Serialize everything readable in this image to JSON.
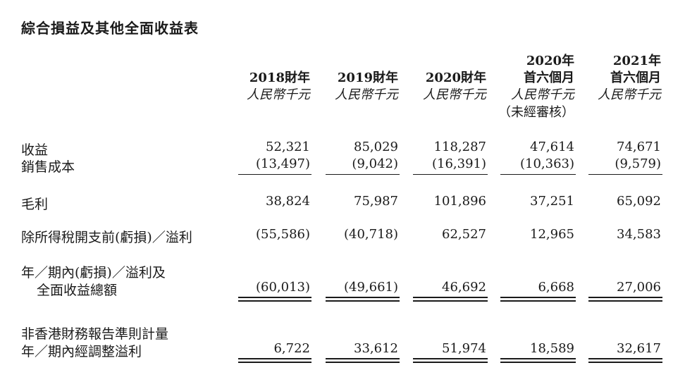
{
  "title": "綜合損益及其他全面收益表",
  "columns": [
    {
      "year_line": "",
      "period": "2018財年",
      "unit": "人民幣千元",
      "note": ""
    },
    {
      "year_line": "",
      "period": "2019財年",
      "unit": "人民幣千元",
      "note": ""
    },
    {
      "year_line": "",
      "period": "2020財年",
      "unit": "人民幣千元",
      "note": ""
    },
    {
      "year_line": "2020年",
      "period": "首六個月",
      "unit": "人民幣千元",
      "note": "（未經審核）"
    },
    {
      "year_line": "2021年",
      "period": "首六個月",
      "unit": "人民幣千元",
      "note": ""
    }
  ],
  "rows": [
    {
      "label": "收益",
      "label2": "",
      "values": [
        "52,321",
        "85,029",
        "118,287",
        "47,614",
        "74,671"
      ]
    },
    {
      "label": "銷售成本",
      "label2": "",
      "values": [
        "(13,497)",
        "(9,042)",
        "(16,391)",
        "(10,363)",
        "(9,579)"
      ]
    },
    {
      "label": "毛利",
      "label2": "",
      "values": [
        "38,824",
        "75,987",
        "101,896",
        "37,251",
        "65,092"
      ]
    },
    {
      "label": "除所得稅開支前(虧損)／溢利",
      "label2": "",
      "values": [
        "(55,586)",
        "(40,718)",
        "62,527",
        "12,965",
        "34,583"
      ]
    },
    {
      "label": "年／期內(虧損)／溢利及",
      "label2": "全面收益總額",
      "values": [
        "(60,013)",
        "(49,661)",
        "46,692",
        "6,668",
        "27,006"
      ]
    },
    {
      "label": "非香港財務報告準則計量",
      "label2": "年／期內經調整溢利",
      "values": [
        "6,722",
        "33,612",
        "51,974",
        "18,589",
        "32,617"
      ]
    }
  ]
}
